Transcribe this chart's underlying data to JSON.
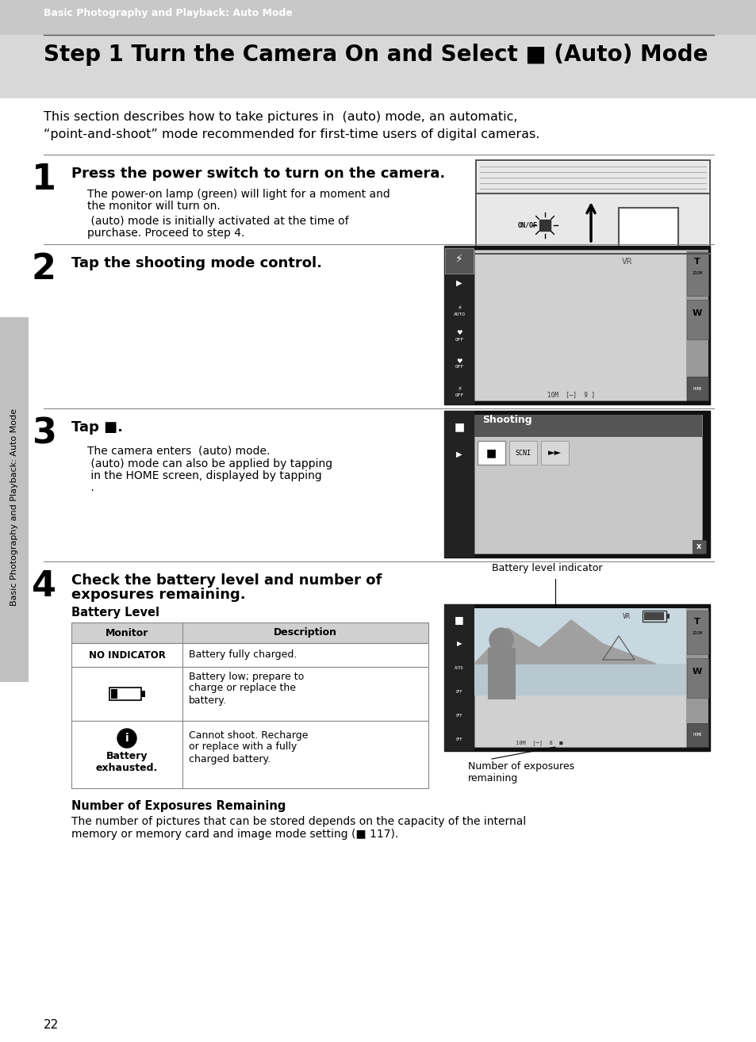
{
  "page_bg": "#ffffff",
  "header_bg": "#999999",
  "header_text": "Basic Photography and Playback: Auto Mode",
  "title_text": "Step 1 Turn the Camera On and Select  (Auto) Mode",
  "intro_line1": "This section describes how to take pictures in  (auto) mode, an automatic,",
  "intro_line2": "“point-and-shoot” mode recommended for first-time users of digital cameras.",
  "s1_head": "Press the power switch to turn on the camera.",
  "s1_body1": "The power-on lamp (green) will light for a moment and",
  "s1_body2": "the monitor will turn on.",
  "s1_body3": " (auto) mode is initially activated at the time of",
  "s1_body4": "purchase. Proceed to step 4.",
  "s2_head": "Tap the shooting mode control.",
  "s3_head": "Tap  .",
  "s3_body1": "The camera enters  (auto) mode.",
  "s3_body2": " (auto) mode can also be applied by tapping",
  "s3_body3": " in the HOME screen, displayed by tapping",
  "s3_body4": " .",
  "s4_head1": "Check the battery level and number of",
  "s4_head2": "exposures remaining.",
  "battery_level_label": "Battery Level",
  "monitor_col": "Monitor",
  "desc_col": "Description",
  "row1_c1": "NO INDICATOR",
  "row1_c2": "Battery fully charged.",
  "row2_c2a": "Battery low; prepare to",
  "row2_c2b": "charge or replace the",
  "row2_c2c": "battery.",
  "row3_c2a": "Cannot shoot. Recharge",
  "row3_c2b": "or replace with a fully",
  "row3_c2c": "charged battery.",
  "row3_c1a": "Battery",
  "row3_c1b": "exhausted.",
  "num_exp_head": "Number of Exposures Remaining",
  "num_exp_body1": "The number of pictures that can be stored depends on the capacity of the internal",
  "num_exp_body2": "memory or memory card and image mode setting (■ 117).",
  "batt_indicator_label": "Battery level indicator",
  "num_exp_label1": "Number of exposures",
  "num_exp_label2": "remaining",
  "page_num": "22",
  "sidebar_label": "Basic Photography and Playback: Auto Mode",
  "gray_bg": "#c8c8c8",
  "light_gray": "#d8d8d8",
  "dark_gray": "#666666",
  "black": "#000000",
  "white": "#ffffff",
  "table_border": "#888888",
  "table_header_bg": "#d0d0d0"
}
